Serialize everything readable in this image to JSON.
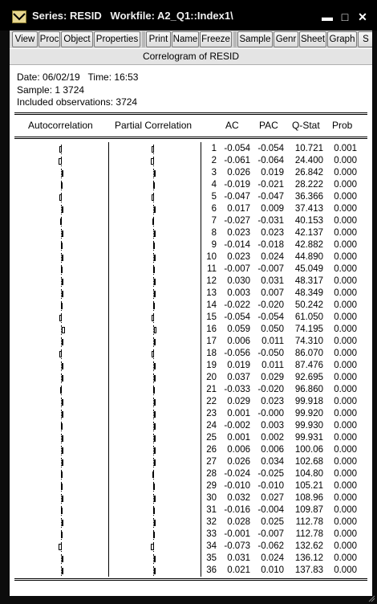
{
  "window": {
    "title": "Series: RESID   Workfile: A2_Q1::Index1\\",
    "minimize": "▬",
    "restore": "□",
    "close": "✕"
  },
  "toolbar": {
    "buttons": [
      "View",
      "Proc",
      "Object",
      "Properties",
      "Print",
      "Name",
      "Freeze",
      "Sample",
      "Genr",
      "Sheet",
      "Graph",
      "S"
    ]
  },
  "view_title": "Correlogram of RESID",
  "info": {
    "date_line": "Date: 06/02/19   Time: 16:53",
    "sample_line": "Sample: 1 3724",
    "obs_line": "Included observations: 3724"
  },
  "columns": {
    "autocorrelation": "Autocorrelation",
    "partial_correlation": "Partial Correlation",
    "ac": "AC",
    "pac": "PAC",
    "qstat": "Q-Stat",
    "prob": "Prob"
  },
  "rows": [
    {
      "lag": "1",
      "ac": "-0.054",
      "pac": "-0.054",
      "q": "10.721",
      "p": "0.001"
    },
    {
      "lag": "2",
      "ac": "-0.061",
      "pac": "-0.064",
      "q": "24.400",
      "p": "0.000"
    },
    {
      "lag": "3",
      "ac": "0.026",
      "pac": "0.019",
      "q": "26.842",
      "p": "0.000"
    },
    {
      "lag": "4",
      "ac": "-0.019",
      "pac": "-0.021",
      "q": "28.222",
      "p": "0.000"
    },
    {
      "lag": "5",
      "ac": "-0.047",
      "pac": "-0.047",
      "q": "36.366",
      "p": "0.000"
    },
    {
      "lag": "6",
      "ac": "0.017",
      "pac": "0.009",
      "q": "37.413",
      "p": "0.000"
    },
    {
      "lag": "7",
      "ac": "-0.027",
      "pac": "-0.031",
      "q": "40.153",
      "p": "0.000"
    },
    {
      "lag": "8",
      "ac": "0.023",
      "pac": "0.023",
      "q": "42.137",
      "p": "0.000"
    },
    {
      "lag": "9",
      "ac": "-0.014",
      "pac": "-0.018",
      "q": "42.882",
      "p": "0.000"
    },
    {
      "lag": "10",
      "ac": "0.023",
      "pac": "0.024",
      "q": "44.890",
      "p": "0.000"
    },
    {
      "lag": "11",
      "ac": "-0.007",
      "pac": "-0.007",
      "q": "45.049",
      "p": "0.000"
    },
    {
      "lag": "12",
      "ac": "0.030",
      "pac": "0.031",
      "q": "48.317",
      "p": "0.000"
    },
    {
      "lag": "13",
      "ac": "0.003",
      "pac": "0.007",
      "q": "48.349",
      "p": "0.000"
    },
    {
      "lag": "14",
      "ac": "-0.022",
      "pac": "-0.020",
      "q": "50.242",
      "p": "0.000"
    },
    {
      "lag": "15",
      "ac": "-0.054",
      "pac": "-0.054",
      "q": "61.050",
      "p": "0.000"
    },
    {
      "lag": "16",
      "ac": "0.059",
      "pac": "0.050",
      "q": "74.195",
      "p": "0.000"
    },
    {
      "lag": "17",
      "ac": "0.006",
      "pac": "0.011",
      "q": "74.310",
      "p": "0.000"
    },
    {
      "lag": "18",
      "ac": "-0.056",
      "pac": "-0.050",
      "q": "86.070",
      "p": "0.000"
    },
    {
      "lag": "19",
      "ac": "0.019",
      "pac": "0.011",
      "q": "87.476",
      "p": "0.000"
    },
    {
      "lag": "20",
      "ac": "0.037",
      "pac": "0.029",
      "q": "92.695",
      "p": "0.000"
    },
    {
      "lag": "21",
      "ac": "-0.033",
      "pac": "-0.020",
      "q": "96.860",
      "p": "0.000"
    },
    {
      "lag": "22",
      "ac": "0.029",
      "pac": "0.023",
      "q": "99.918",
      "p": "0.000"
    },
    {
      "lag": "23",
      "ac": "0.001",
      "pac": "-0.000",
      "q": "99.920",
      "p": "0.000"
    },
    {
      "lag": "24",
      "ac": "-0.002",
      "pac": "0.003",
      "q": "99.930",
      "p": "0.000"
    },
    {
      "lag": "25",
      "ac": "0.001",
      "pac": "0.002",
      "q": "99.931",
      "p": "0.000"
    },
    {
      "lag": "26",
      "ac": "0.006",
      "pac": "0.006",
      "q": "100.06",
      "p": "0.000"
    },
    {
      "lag": "27",
      "ac": "0.026",
      "pac": "0.034",
      "q": "102.68",
      "p": "0.000"
    },
    {
      "lag": "28",
      "ac": "-0.024",
      "pac": "-0.025",
      "q": "104.80",
      "p": "0.000"
    },
    {
      "lag": "29",
      "ac": "-0.010",
      "pac": "-0.010",
      "q": "105.21",
      "p": "0.000"
    },
    {
      "lag": "30",
      "ac": "0.032",
      "pac": "0.027",
      "q": "108.96",
      "p": "0.000"
    },
    {
      "lag": "31",
      "ac": "-0.016",
      "pac": "-0.004",
      "q": "109.87",
      "p": "0.000"
    },
    {
      "lag": "32",
      "ac": "0.028",
      "pac": "0.025",
      "q": "112.78",
      "p": "0.000"
    },
    {
      "lag": "33",
      "ac": "-0.001",
      "pac": "-0.007",
      "q": "112.78",
      "p": "0.000"
    },
    {
      "lag": "34",
      "ac": "-0.073",
      "pac": "-0.062",
      "q": "132.62",
      "p": "0.000"
    },
    {
      "lag": "35",
      "ac": "0.031",
      "pac": "0.024",
      "q": "136.12",
      "p": "0.000"
    },
    {
      "lag": "36",
      "ac": "0.021",
      "pac": "0.010",
      "q": "137.83",
      "p": "0.000"
    }
  ]
}
